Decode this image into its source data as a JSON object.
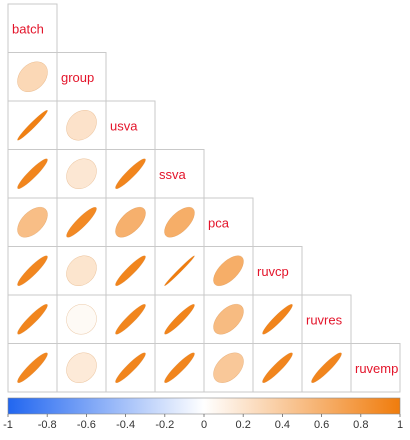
{
  "chart_data": {
    "type": "heatmap",
    "variables": [
      "batch",
      "group",
      "usva",
      "ssva",
      "pca",
      "ruvcp",
      "ruvres",
      "ruvemp"
    ],
    "correlations": [
      [
        1.0,
        0.3,
        0.97,
        0.93,
        0.5,
        0.92,
        0.93,
        0.92
      ],
      [
        0.3,
        1.0,
        0.22,
        0.18,
        0.9,
        0.2,
        0.04,
        0.16
      ],
      [
        0.97,
        0.22,
        1.0,
        0.93,
        0.6,
        0.93,
        0.93,
        0.93
      ],
      [
        0.93,
        0.18,
        0.93,
        1.0,
        0.62,
        0.99,
        0.94,
        0.93
      ],
      [
        0.5,
        0.9,
        0.6,
        0.62,
        1.0,
        0.62,
        0.52,
        0.42
      ],
      [
        0.92,
        0.2,
        0.93,
        0.99,
        0.62,
        1.0,
        0.94,
        0.93
      ],
      [
        0.93,
        0.04,
        0.93,
        0.94,
        0.52,
        0.94,
        1.0,
        0.93
      ],
      [
        0.92,
        0.16,
        0.93,
        0.93,
        0.42,
        0.93,
        0.93,
        1.0
      ]
    ],
    "colorbar": {
      "ticks": [
        "-1",
        "-0.8",
        "-0.6",
        "-0.4",
        "-0.2",
        "0",
        "0.2",
        "0.4",
        "0.6",
        "0.8",
        "1"
      ],
      "range": [
        -1,
        1
      ],
      "colors": {
        "negative": "#2166f0",
        "zero": "#ffffff",
        "positive": "#f07c0c"
      }
    },
    "layout": "lower-triangle with labels on diagonal",
    "label_color": "#e3142a"
  }
}
